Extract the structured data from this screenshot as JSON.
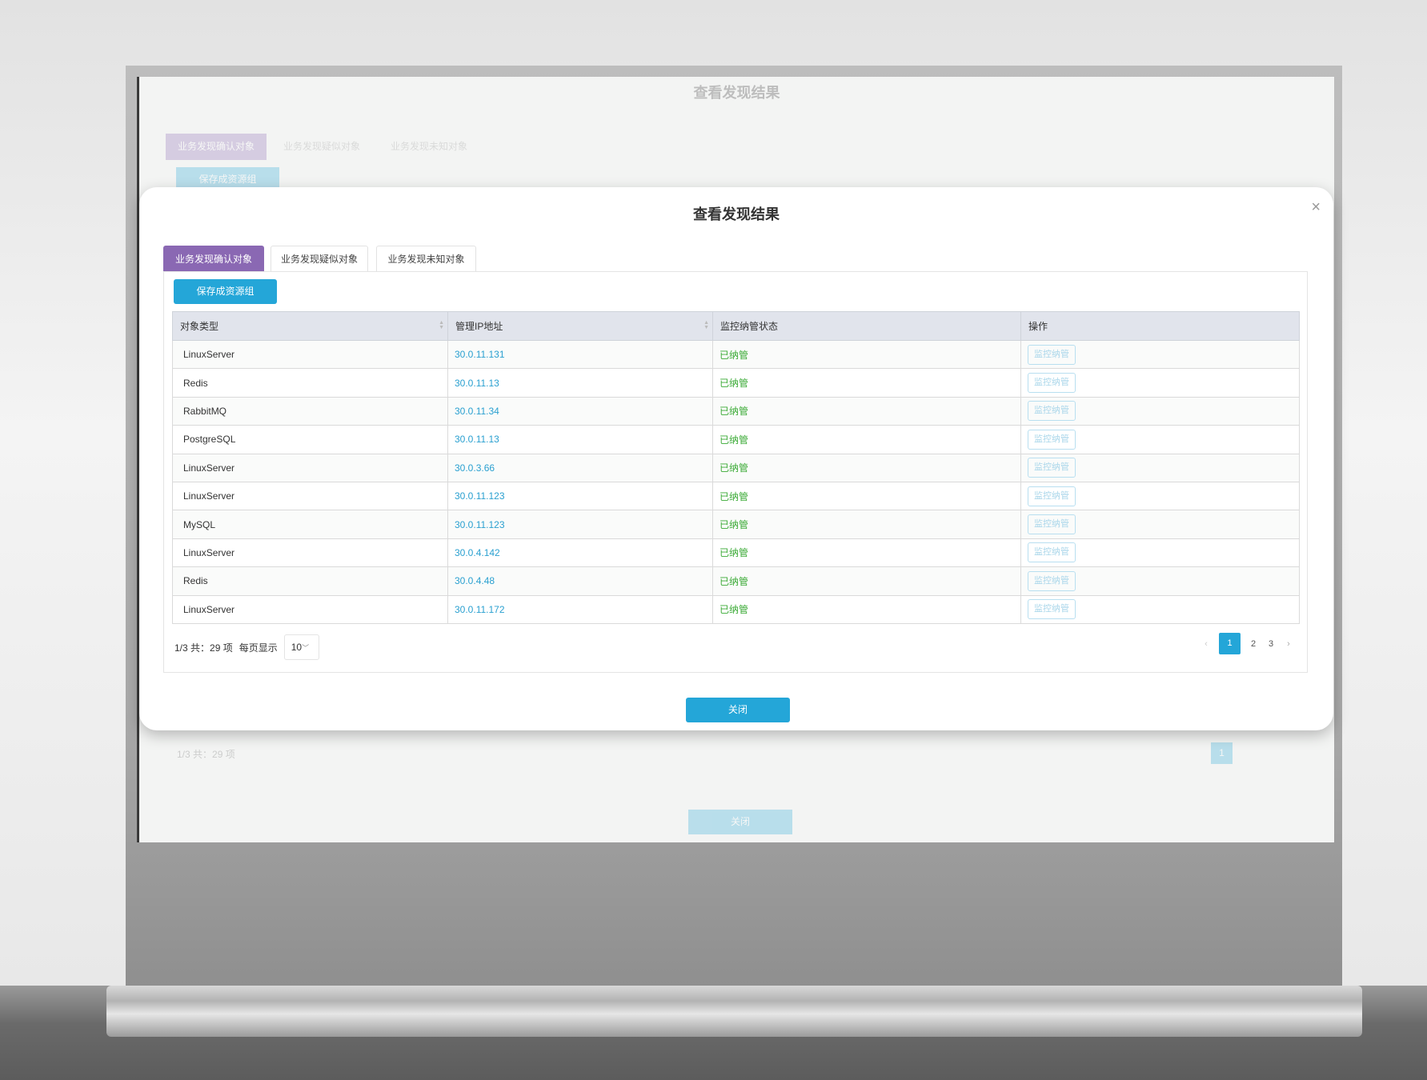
{
  "dialog": {
    "title": "查看发现结果",
    "close_icon": "×"
  },
  "tabs": [
    {
      "label": "业务发现确认对象",
      "active": true
    },
    {
      "label": "业务发现疑似对象",
      "active": false
    },
    {
      "label": "业务发现未知对象",
      "active": false
    }
  ],
  "save_button": "保存成资源组",
  "table": {
    "headers": [
      "对象类型",
      "管理IP地址",
      "监控纳管状态",
      "操作"
    ],
    "rows": [
      {
        "type": "LinuxServer",
        "ip": "30.0.11.131",
        "status": "已纳管",
        "action": "监控纳管"
      },
      {
        "type": "Redis",
        "ip": "30.0.11.13",
        "status": "已纳管",
        "action": "监控纳管"
      },
      {
        "type": "RabbitMQ",
        "ip": "30.0.11.34",
        "status": "已纳管",
        "action": "监控纳管"
      },
      {
        "type": "PostgreSQL",
        "ip": "30.0.11.13",
        "status": "已纳管",
        "action": "监控纳管"
      },
      {
        "type": "LinuxServer",
        "ip": "30.0.3.66",
        "status": "已纳管",
        "action": "监控纳管"
      },
      {
        "type": "LinuxServer",
        "ip": "30.0.11.123",
        "status": "已纳管",
        "action": "监控纳管"
      },
      {
        "type": "MySQL",
        "ip": "30.0.11.123",
        "status": "已纳管",
        "action": "监控纳管"
      },
      {
        "type": "LinuxServer",
        "ip": "30.0.4.142",
        "status": "已纳管",
        "action": "监控纳管"
      },
      {
        "type": "Redis",
        "ip": "30.0.4.48",
        "status": "已纳管",
        "action": "监控纳管"
      },
      {
        "type": "LinuxServer",
        "ip": "30.0.11.172",
        "status": "已纳管",
        "action": "监控纳管"
      }
    ]
  },
  "pagination": {
    "summary": "1/3 共：29 项",
    "per_page_label": "每页显示",
    "per_page": "10",
    "pages": [
      "1",
      "2",
      "3"
    ],
    "current": "1",
    "prev": "‹",
    "next": "›"
  },
  "close_button": "关闭",
  "colors": {
    "accent": "#24a6d8",
    "active_tab": "#8a68b3",
    "status_ok": "#3aaa35",
    "link": "#2aa0d0"
  }
}
